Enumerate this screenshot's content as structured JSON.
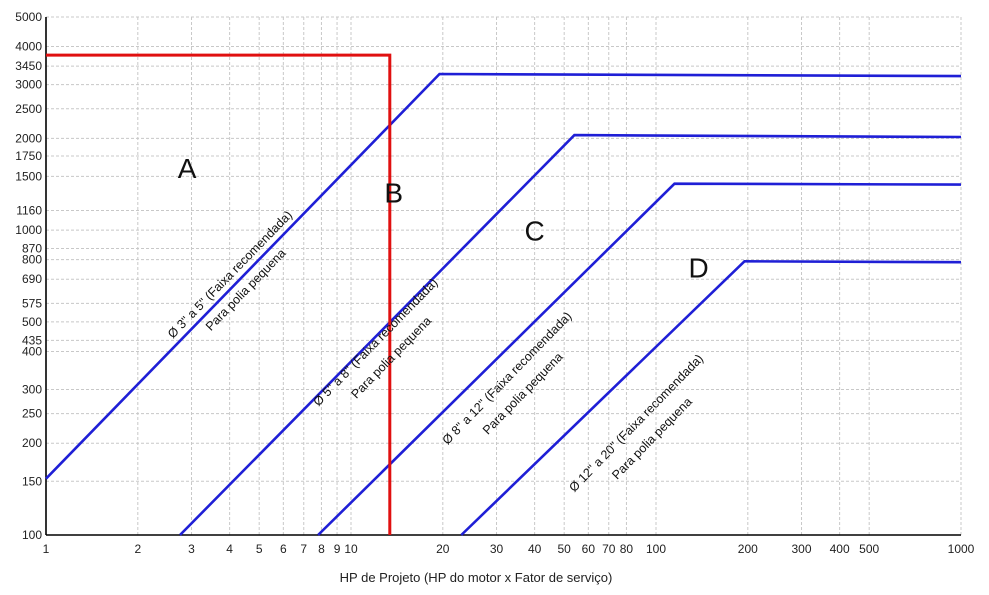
{
  "chart_data": {
    "type": "line",
    "title": "",
    "xlabel": "HP de Projeto (HP do motor x Fator de serviço)",
    "ylabel": "",
    "x_scale": "log",
    "y_scale": "log",
    "xlim": [
      1,
      1000
    ],
    "ylim": [
      100,
      5000
    ],
    "grid": true,
    "x_ticks": [
      1,
      2,
      3,
      4,
      5,
      6,
      7,
      8,
      9,
      10,
      20,
      30,
      40,
      50,
      60,
      70,
      80,
      100,
      200,
      300,
      400,
      500,
      1000
    ],
    "x_tick_labels": [
      "1",
      "2",
      "3",
      "4",
      "5",
      "6",
      "7",
      "8",
      "9",
      "10",
      "20",
      "30",
      "40",
      "50",
      "60",
      "70",
      "80",
      "100",
      "200",
      "300",
      "400",
      "500",
      "1000"
    ],
    "y_ticks": [
      100,
      150,
      200,
      250,
      300,
      400,
      435,
      500,
      575,
      690,
      800,
      870,
      1000,
      1160,
      1500,
      1750,
      2000,
      2500,
      3000,
      3450,
      4000,
      5000
    ],
    "y_tick_labels": [
      "100",
      "150",
      "200",
      "250",
      "300",
      "400",
      "435",
      "500",
      "575",
      "690",
      "800",
      "870",
      "1000",
      "1160",
      "1500",
      "1750",
      "2000",
      "2500",
      "3000",
      "3450",
      "4000",
      "5000"
    ],
    "series": [
      {
        "x": [
          1,
          19.5,
          1000
        ],
        "y": [
          153,
          3250,
          3200
        ]
      },
      {
        "x": [
          2.75,
          54,
          1000
        ],
        "y": [
          100,
          2050,
          2020
        ]
      },
      {
        "x": [
          7.8,
          115,
          1000
        ],
        "y": [
          100,
          1420,
          1410
        ]
      },
      {
        "x": [
          23,
          195,
          1000
        ],
        "y": [
          100,
          790,
          785
        ]
      }
    ],
    "reference_lines": [
      {
        "x": [
          1,
          13.4,
          13.4
        ],
        "y": [
          3750,
          3750,
          100
        ]
      }
    ],
    "region_labels": [
      {
        "text": "A",
        "x": 2.9,
        "y": 1480
      },
      {
        "text": "B",
        "x": 13.8,
        "y": 1230
      },
      {
        "text": "C",
        "x": 40,
        "y": 925
      },
      {
        "text": "D",
        "x": 138,
        "y": 700
      }
    ],
    "band_labels": [
      {
        "line1": "Ø 3\" a 5\" (Faixa recomendada)",
        "line2": "Para polia pequena",
        "x": 4.1,
        "y": 700
      },
      {
        "line1": "Ø 5\" a 8\" (Faixa recomendada)",
        "line2": "Para polia pequena",
        "x": 12.3,
        "y": 420
      },
      {
        "line1": "Ø 8\" a 12\" (Faixa recomendada)",
        "line2": "Para polia pequena",
        "x": 33.2,
        "y": 320
      },
      {
        "line1": "Ø 12\" a 20\" (Faixa recomendada)",
        "line2": "Para polia pequena",
        "x": 88,
        "y": 228
      }
    ],
    "colors": {
      "series": "#1f1fd6",
      "reference": "#e01010",
      "grid": "#c8c8c8",
      "axis": "#000000"
    }
  }
}
